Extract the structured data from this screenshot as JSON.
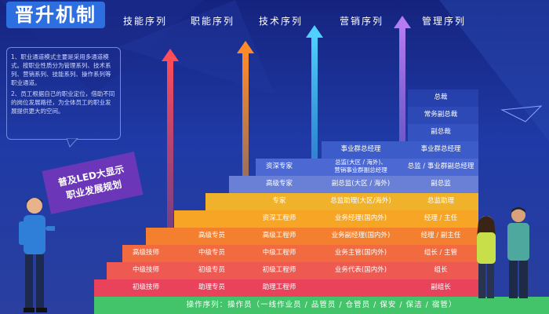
{
  "title": "晋升机制",
  "columns": [
    "技能序列",
    "职能序列",
    "技术序列",
    "营销序列",
    "管理序列"
  ],
  "notes": [
    "1、职业通道模式主要是采用多通道模式。按职业性质分为管理系列、技术系列、营销系列、技能系列、操作系列等职业通道。",
    "2、员工根据自己的职业定位，借助不同的岗位发展路径，为全体员工的职业发展提供更大的空间。"
  ],
  "ribbon": {
    "line1": "普及LED大显示",
    "line2": "职业发展规划"
  },
  "rows": [
    {
      "skill": "初级技师",
      "func": "助理专员",
      "tech": "助理工程师",
      "sales": "",
      "mgmt": "副组长"
    },
    {
      "skill": "中级技师",
      "func": "初级专员",
      "tech": "初级工程师",
      "sales": "业务代表(国内外)",
      "mgmt": "组长"
    },
    {
      "skill": "高级技师",
      "func": "中级专员",
      "tech": "中级工程师",
      "sales": "业务主管(国内外)",
      "mgmt": "组长 / 主管"
    },
    {
      "skill": "",
      "func": "高级专员",
      "tech": "高级工程师",
      "sales": "业务副经理(国内外)",
      "mgmt": "经理 / 副主任"
    },
    {
      "skill": "",
      "func": "",
      "tech": "资深工程师",
      "sales": "业务经理(国内外)",
      "mgmt": "经理 / 主任"
    },
    {
      "skill": "",
      "func": "",
      "tech": "专家",
      "sales": "总监助理(大区/海外)",
      "mgmt": "总监助理"
    },
    {
      "skill": "",
      "func": "",
      "tech": "高级专家",
      "sales": "副总监(大区 / 海外)",
      "mgmt": "副总监"
    },
    {
      "skill": "",
      "func": "",
      "tech": "资深专家",
      "sales": "总监(大区 / 海外)、营销事业群副总经理",
      "mgmt": "总监 / 事业群副总经理"
    },
    {
      "skill": "",
      "func": "",
      "tech": "",
      "sales": "事业群总经理",
      "mgmt": "事业群总经理"
    },
    {
      "skill": "",
      "func": "",
      "tech": "",
      "sales": "",
      "mgmt": "副总裁"
    },
    {
      "skill": "",
      "func": "",
      "tech": "",
      "sales": "",
      "mgmt": "常务副总裁"
    },
    {
      "skill": "",
      "func": "",
      "tech": "",
      "sales": "",
      "mgmt": "总裁"
    }
  ],
  "base_label": "操作序列：操作员（一线作业员 / 品管员 / 仓管员 / 保安 / 保洁 / 宿管）",
  "colors": {
    "title": "#2d6ee0",
    "base": "#43c46a",
    "steps": [
      "#e9435c",
      "#ee5a52",
      "#f16a40",
      "#f4802f",
      "#f7a524",
      "#f0b22b",
      "#6a7fd6",
      "#4c68d2",
      "#3b5cc9",
      "#3452c0",
      "#2d49b6",
      "#2641ac"
    ]
  }
}
